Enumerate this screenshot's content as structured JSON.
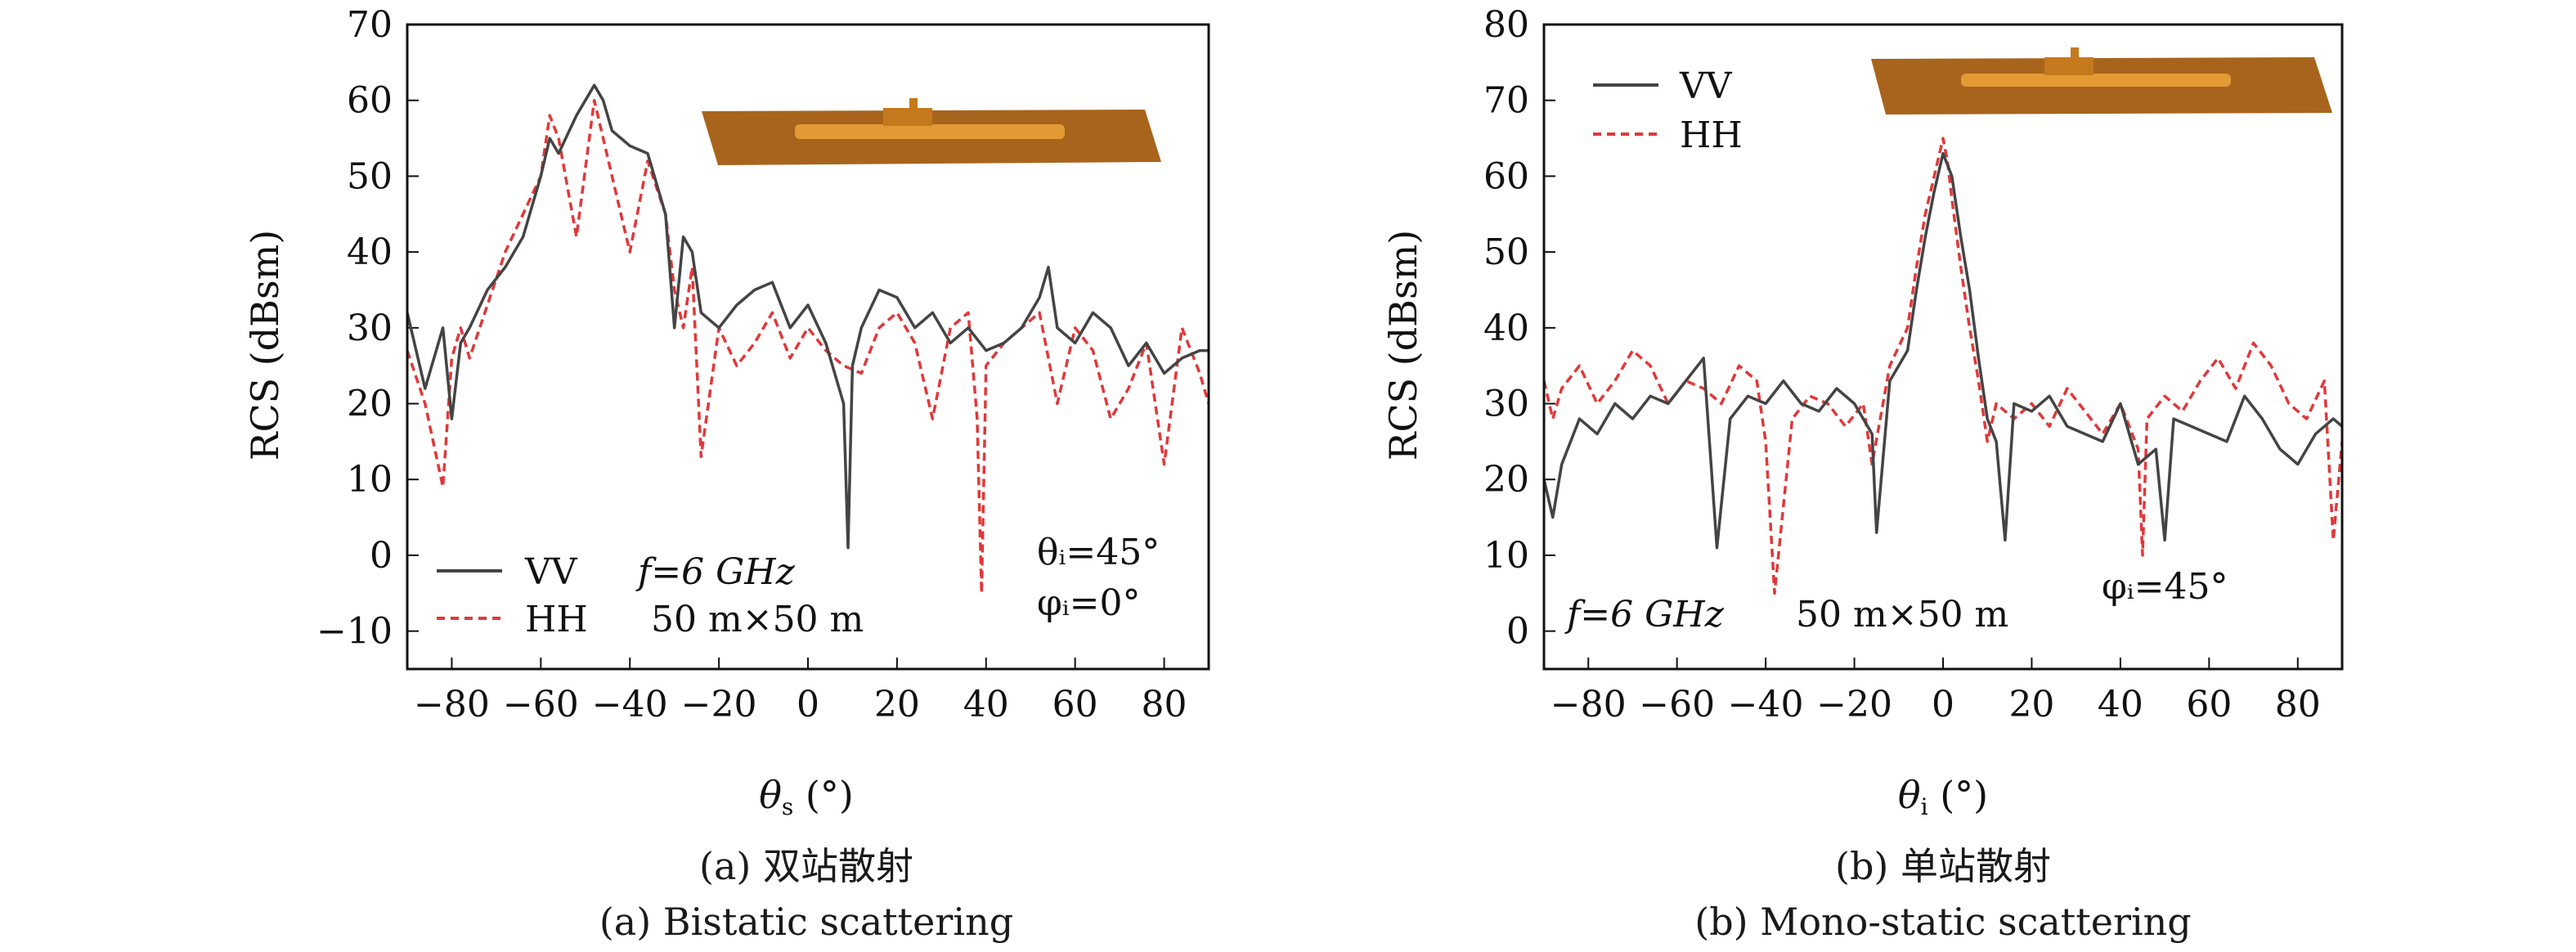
{
  "colors": {
    "vv": "#444444",
    "hh": "#e0383a",
    "deck": "#c4791c",
    "hull": "#e39a35",
    "sea": "#a8641c"
  },
  "captions": {
    "a_cn": "(a) 双站散射",
    "a_en": "(a) Bistatic scattering",
    "b_cn": "(b) 单站散射",
    "b_en": "(b) Mono-static scattering"
  },
  "chart_data": [
    {
      "type": "line",
      "ylabel": "RCS (dBsm)",
      "xlabel_sym": "θ",
      "xlabel_sub": "s",
      "xlabel_unit": " (°)",
      "xlim": [
        -90,
        90
      ],
      "ylim": [
        -15,
        70
      ],
      "xticks": [
        -80,
        -60,
        -40,
        -20,
        0,
        20,
        40,
        60,
        80
      ],
      "yticks": [
        -10,
        0,
        10,
        20,
        30,
        40,
        50,
        60,
        70
      ],
      "legend": {
        "vv": "VV",
        "hh": "HH"
      },
      "annotations": {
        "freq": "f=6 GHz",
        "size": "50 m×50 m",
        "theta": "θᵢ=45°",
        "phi": "φᵢ=0°"
      },
      "series": [
        {
          "name": "VV",
          "style": "solid",
          "x": [
            -90,
            -86,
            -82,
            -80,
            -78,
            -76,
            -72,
            -68,
            -64,
            -60,
            -58,
            -56,
            -52,
            -48,
            -46,
            -44,
            -40,
            -36,
            -32,
            -30,
            -28,
            -26,
            -24,
            -20,
            -16,
            -12,
            -8,
            -4,
            0,
            4,
            8,
            9,
            10,
            12,
            16,
            20,
            24,
            28,
            32,
            36,
            40,
            44,
            48,
            52,
            54,
            56,
            60,
            64,
            68,
            72,
            76,
            80,
            84,
            88,
            90
          ],
          "y": [
            32,
            22,
            30,
            18,
            28,
            30,
            35,
            38,
            42,
            50,
            55,
            53,
            58,
            62,
            60,
            56,
            54,
            53,
            45,
            30,
            42,
            40,
            32,
            30,
            33,
            35,
            36,
            30,
            33,
            28,
            20,
            1,
            25,
            30,
            35,
            34,
            30,
            32,
            28,
            30,
            27,
            28,
            30,
            34,
            38,
            30,
            28,
            32,
            30,
            25,
            28,
            24,
            26,
            27,
            27
          ]
        },
        {
          "name": "HH",
          "style": "dashed",
          "x": [
            -90,
            -86,
            -82,
            -80,
            -78,
            -76,
            -72,
            -68,
            -64,
            -60,
            -58,
            -56,
            -52,
            -48,
            -46,
            -44,
            -40,
            -36,
            -32,
            -30,
            -28,
            -26,
            -24,
            -20,
            -16,
            -12,
            -8,
            -4,
            0,
            4,
            8,
            12,
            16,
            20,
            24,
            28,
            32,
            36,
            38,
            39,
            40,
            44,
            48,
            52,
            56,
            60,
            64,
            68,
            72,
            76,
            80,
            84,
            88,
            90
          ],
          "y": [
            27,
            20,
            9,
            26,
            30,
            26,
            33,
            40,
            45,
            50,
            58,
            55,
            42,
            60,
            55,
            50,
            40,
            52,
            45,
            35,
            30,
            38,
            13,
            30,
            25,
            28,
            32,
            26,
            30,
            27,
            25,
            24,
            30,
            32,
            28,
            18,
            30,
            32,
            18,
            -5,
            25,
            28,
            30,
            32,
            20,
            30,
            27,
            18,
            22,
            28,
            12,
            30,
            24,
            20
          ]
        }
      ]
    },
    {
      "type": "line",
      "ylabel": "RCS (dBsm)",
      "xlabel_sym": "θ",
      "xlabel_sub": "i",
      "xlabel_unit": " (°)",
      "xlim": [
        -90,
        90
      ],
      "ylim": [
        -5,
        80
      ],
      "xticks": [
        -80,
        -60,
        -40,
        -20,
        0,
        20,
        40,
        60,
        80
      ],
      "yticks": [
        0,
        10,
        20,
        30,
        40,
        50,
        60,
        70,
        80
      ],
      "legend": {
        "vv": "VV",
        "hh": "HH"
      },
      "annotations": {
        "freq": "f=6 GHz",
        "size": "50 m×50 m",
        "phi": "φᵢ=45°"
      },
      "series": [
        {
          "name": "VV",
          "style": "solid",
          "x": [
            -90,
            -88,
            -86,
            -82,
            -78,
            -74,
            -70,
            -66,
            -62,
            -58,
            -54,
            -51,
            -48,
            -44,
            -40,
            -36,
            -32,
            -28,
            -24,
            -20,
            -16,
            -15,
            -12,
            -8,
            -6,
            -4,
            -2,
            0,
            2,
            4,
            6,
            8,
            10,
            12,
            14,
            16,
            20,
            24,
            28,
            32,
            36,
            40,
            44,
            48,
            50,
            52,
            56,
            60,
            64,
            68,
            72,
            76,
            80,
            84,
            88,
            90
          ],
          "y": [
            20,
            15,
            22,
            28,
            26,
            30,
            28,
            31,
            30,
            33,
            36,
            11,
            28,
            31,
            30,
            33,
            30,
            29,
            32,
            30,
            26,
            13,
            33,
            37,
            45,
            52,
            58,
            63,
            60,
            52,
            45,
            36,
            28,
            25,
            12,
            30,
            29,
            31,
            27,
            26,
            25,
            30,
            22,
            24,
            12,
            28,
            27,
            26,
            25,
            31,
            28,
            24,
            22,
            26,
            28,
            27
          ]
        },
        {
          "name": "HH",
          "style": "dashed",
          "x": [
            -90,
            -88,
            -86,
            -82,
            -78,
            -74,
            -70,
            -66,
            -62,
            -58,
            -54,
            -50,
            -46,
            -42,
            -40,
            -38,
            -34,
            -30,
            -26,
            -22,
            -18,
            -16,
            -12,
            -8,
            -6,
            -4,
            -2,
            0,
            1,
            2,
            4,
            6,
            8,
            10,
            12,
            16,
            20,
            24,
            28,
            32,
            36,
            40,
            44,
            45,
            46,
            50,
            54,
            58,
            62,
            66,
            70,
            74,
            78,
            82,
            86,
            88,
            90
          ],
          "y": [
            33,
            28,
            32,
            35,
            30,
            33,
            37,
            35,
            30,
            33,
            32,
            30,
            35,
            33,
            25,
            5,
            28,
            31,
            30,
            27,
            30,
            22,
            35,
            40,
            48,
            55,
            60,
            65,
            62,
            57,
            48,
            40,
            33,
            25,
            30,
            28,
            30,
            27,
            32,
            29,
            26,
            30,
            24,
            10,
            28,
            31,
            29,
            33,
            36,
            32,
            38,
            35,
            30,
            28,
            33,
            12,
            25
          ]
        }
      ]
    }
  ]
}
